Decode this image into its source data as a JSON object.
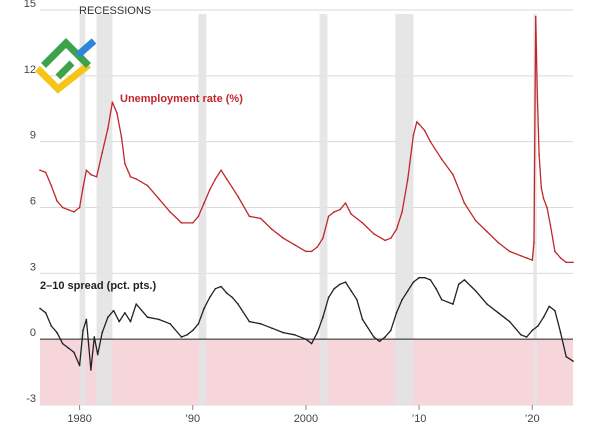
{
  "chart_data": {
    "type": "line",
    "recessions_label": "RECESSIONS",
    "recessions": [
      [
        1980.0,
        1980.5
      ],
      [
        1981.5,
        1982.9
      ],
      [
        1990.5,
        1991.2
      ],
      [
        2001.2,
        2001.9
      ],
      [
        2007.9,
        2009.5
      ],
      [
        2020.1,
        2020.4
      ]
    ],
    "y_ticks": [
      "15",
      "12",
      "9",
      "6",
      "3",
      "0",
      "-3"
    ],
    "x_ticks": [
      "1980",
      "’90",
      "2000",
      "’10",
      "’20"
    ],
    "xlim": [
      1976.5,
      2023.6
    ],
    "ylim": [
      -3,
      15
    ],
    "negative_zone_color": "#f6d6da",
    "series": [
      {
        "name": "Unemployment rate (%)",
        "label": "Unemployment rate (%)",
        "color": "#c0272d",
        "x": [
          1976.5,
          1977.0,
          1977.5,
          1978.0,
          1978.5,
          1979.0,
          1979.5,
          1980.0,
          1980.3,
          1980.6,
          1981.0,
          1981.5,
          1982.0,
          1982.5,
          1982.9,
          1983.3,
          1983.7,
          1984.0,
          1984.5,
          1985.0,
          1986.0,
          1987.0,
          1988.0,
          1989.0,
          1990.0,
          1990.5,
          1991.0,
          1991.5,
          1992.0,
          1992.5,
          1993.0,
          1993.5,
          1994.0,
          1995.0,
          1996.0,
          1997.0,
          1998.0,
          1999.0,
          2000.0,
          2000.5,
          2001.0,
          2001.5,
          2002.0,
          2002.5,
          2003.0,
          2003.5,
          2004.0,
          2005.0,
          2006.0,
          2007.0,
          2007.5,
          2008.0,
          2008.5,
          2009.0,
          2009.5,
          2009.8,
          2010.0,
          2010.5,
          2011.0,
          2012.0,
          2013.0,
          2014.0,
          2015.0,
          2016.0,
          2017.0,
          2018.0,
          2019.0,
          2019.5,
          2020.0,
          2020.15,
          2020.3,
          2020.45,
          2020.6,
          2020.8,
          2021.0,
          2021.3,
          2021.6,
          2022.0,
          2022.5,
          2023.0,
          2023.6
        ],
        "y": [
          7.7,
          7.6,
          7.0,
          6.3,
          6.0,
          5.9,
          5.8,
          6.0,
          6.9,
          7.7,
          7.5,
          7.4,
          8.5,
          9.6,
          10.8,
          10.3,
          9.2,
          8.0,
          7.4,
          7.3,
          7.0,
          6.4,
          5.8,
          5.3,
          5.3,
          5.6,
          6.2,
          6.8,
          7.3,
          7.7,
          7.3,
          6.9,
          6.5,
          5.6,
          5.5,
          5.0,
          4.6,
          4.3,
          4.0,
          4.0,
          4.2,
          4.6,
          5.6,
          5.8,
          5.9,
          6.2,
          5.7,
          5.3,
          4.8,
          4.5,
          4.6,
          5.0,
          5.8,
          7.3,
          9.3,
          9.9,
          9.8,
          9.5,
          9.0,
          8.2,
          7.5,
          6.2,
          5.4,
          4.9,
          4.4,
          4.0,
          3.8,
          3.7,
          3.6,
          4.4,
          14.7,
          11.0,
          8.4,
          6.9,
          6.4,
          6.0,
          5.2,
          4.0,
          3.7,
          3.5,
          3.5
        ]
      },
      {
        "name": "2–10 spread (pct. pts.)",
        "label": "2–10 spread (pct. pts.)",
        "color": "#222222",
        "x": [
          1976.5,
          1977.0,
          1977.5,
          1978.0,
          1978.5,
          1979.0,
          1979.5,
          1980.0,
          1980.3,
          1980.6,
          1981.0,
          1981.3,
          1981.6,
          1982.0,
          1982.5,
          1983.0,
          1983.5,
          1984.0,
          1984.5,
          1985.0,
          1986.0,
          1987.0,
          1988.0,
          1989.0,
          1989.5,
          1990.0,
          1990.5,
          1991.0,
          1991.5,
          1992.0,
          1992.5,
          1993.0,
          1993.5,
          1994.0,
          1995.0,
          1996.0,
          1997.0,
          1998.0,
          1999.0,
          2000.0,
          2000.5,
          2001.0,
          2001.5,
          2002.0,
          2002.5,
          2003.0,
          2003.5,
          2004.0,
          2004.5,
          2005.0,
          2006.0,
          2006.5,
          2007.0,
          2007.5,
          2008.0,
          2008.5,
          2009.0,
          2009.5,
          2010.0,
          2010.5,
          2011.0,
          2011.5,
          2012.0,
          2013.0,
          2013.5,
          2014.0,
          2015.0,
          2016.0,
          2017.0,
          2018.0,
          2019.0,
          2019.5,
          2020.0,
          2020.5,
          2021.0,
          2021.5,
          2022.0,
          2022.5,
          2023.0,
          2023.6
        ],
        "y": [
          1.4,
          1.2,
          0.6,
          0.3,
          -0.2,
          -0.4,
          -0.6,
          -1.2,
          0.4,
          0.9,
          -1.4,
          0.1,
          -0.7,
          0.3,
          1.0,
          1.3,
          0.8,
          1.2,
          0.8,
          1.6,
          1.0,
          0.9,
          0.7,
          0.1,
          0.2,
          0.4,
          0.7,
          1.4,
          1.9,
          2.3,
          2.4,
          2.1,
          1.9,
          1.6,
          0.8,
          0.7,
          0.5,
          0.3,
          0.2,
          0.0,
          -0.2,
          0.3,
          1.0,
          1.9,
          2.3,
          2.5,
          2.6,
          2.2,
          1.8,
          0.9,
          0.1,
          -0.1,
          0.1,
          0.4,
          1.2,
          1.8,
          2.2,
          2.6,
          2.8,
          2.8,
          2.7,
          2.3,
          1.8,
          1.6,
          2.5,
          2.7,
          2.2,
          1.6,
          1.2,
          0.8,
          0.2,
          0.1,
          0.4,
          0.6,
          1.0,
          1.5,
          1.3,
          0.3,
          -0.8,
          -1.0
        ]
      }
    ]
  }
}
